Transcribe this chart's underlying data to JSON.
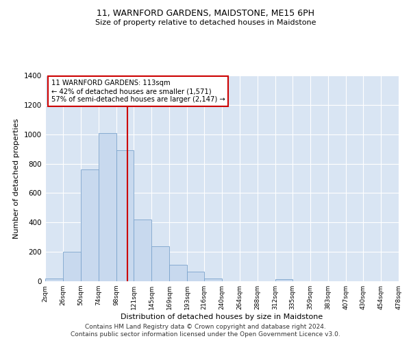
{
  "title": "11, WARNFORD GARDENS, MAIDSTONE, ME15 6PH",
  "subtitle": "Size of property relative to detached houses in Maidstone",
  "xlabel": "Distribution of detached houses by size in Maidstone",
  "ylabel": "Number of detached properties",
  "bar_color": "#c8d9ee",
  "bar_edge_color": "#7aa3cc",
  "background_color": "#ffffff",
  "grid_color": "#ffffff",
  "plot_bg_color": "#d9e5f3",
  "bin_edges": [
    2,
    26,
    50,
    74,
    98,
    121,
    145,
    169,
    193,
    216,
    240,
    264,
    288,
    312,
    335,
    359,
    383,
    407,
    430,
    454,
    478
  ],
  "bar_heights": [
    20,
    200,
    760,
    1010,
    890,
    420,
    240,
    110,
    65,
    20,
    0,
    0,
    0,
    15,
    0,
    0,
    0,
    0,
    0,
    0
  ],
  "property_size": 113,
  "vline_color": "#cc0000",
  "annotation_text": "11 WARNFORD GARDENS: 113sqm\n← 42% of detached houses are smaller (1,571)\n57% of semi-detached houses are larger (2,147) →",
  "annotation_box_color": "#ffffff",
  "annotation_box_edge": "#cc0000",
  "ylim": [
    0,
    1400
  ],
  "yticks": [
    0,
    200,
    400,
    600,
    800,
    1000,
    1200,
    1400
  ],
  "tick_labels": [
    "2sqm",
    "26sqm",
    "50sqm",
    "74sqm",
    "98sqm",
    "121sqm",
    "145sqm",
    "169sqm",
    "193sqm",
    "216sqm",
    "240sqm",
    "264sqm",
    "288sqm",
    "312sqm",
    "335sqm",
    "359sqm",
    "383sqm",
    "407sqm",
    "430sqm",
    "454sqm",
    "478sqm"
  ],
  "footer_lines": [
    "Contains HM Land Registry data © Crown copyright and database right 2024.",
    "Contains public sector information licensed under the Open Government Licence v3.0."
  ],
  "footer_fontsize": 6.5,
  "title_fontsize": 9,
  "subtitle_fontsize": 8,
  "ylabel_fontsize": 8,
  "xlabel_fontsize": 8
}
